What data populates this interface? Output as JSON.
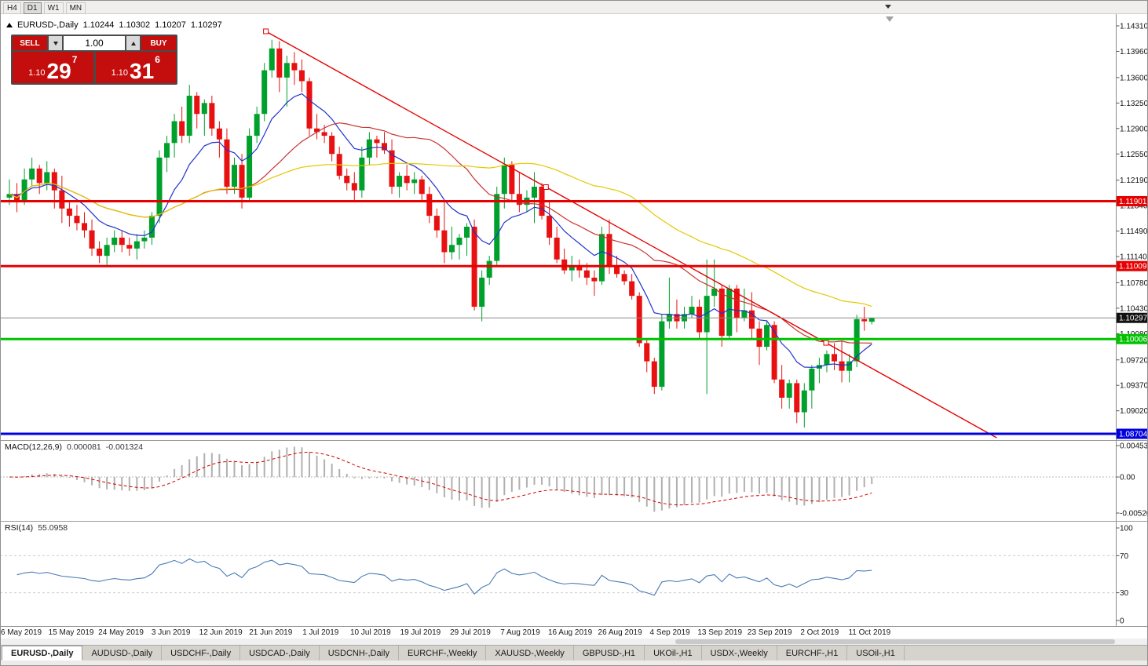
{
  "toolbar": {
    "timeframes": [
      {
        "label": "H4",
        "active": false
      },
      {
        "label": "D1",
        "active": true
      },
      {
        "label": "W1",
        "active": false
      },
      {
        "label": "MN",
        "active": false
      }
    ]
  },
  "chart": {
    "title": "EURUSD-,Daily",
    "open": "1.10244",
    "high": "1.10302",
    "low": "1.10207",
    "close": "1.10297"
  },
  "trade_panel": {
    "sell_label": "SELL",
    "buy_label": "BUY",
    "volume": "1.00",
    "bid": {
      "main": "1.10",
      "big": "29",
      "sup": "7"
    },
    "ask": {
      "main": "1.10",
      "big": "31",
      "sup": "6"
    }
  },
  "indicators": {
    "macd_label": "MACD(12,26,9)",
    "macd_value1": "0.000081",
    "macd_value2": "-0.001324",
    "rsi_label": "RSI(14)",
    "rsi_value": "55.0958"
  },
  "tabs": [
    "EURUSD-,Daily",
    "AUDUSD-,Daily",
    "USDCHF-,Daily",
    "USDCAD-,Daily",
    "USDCNH-,Daily",
    "EURCHF-,Weekly",
    "XAUUSD-,Weekly",
    "GBPUSD-,H1",
    "UKOil-,H1",
    "USDX-,Weekly",
    "EURCHF-,H1",
    "USOil-,H1"
  ],
  "chart_data": {
    "type": "candlestick",
    "symbol": "EURUSD",
    "timeframe": "Daily",
    "colors": {
      "up": "#00a02c",
      "down": "#e81010",
      "macd_histogram": "#b0b0b0",
      "macd_signal": "#d40000",
      "rsi": "#4a7ab5",
      "current_price_line": "#8a8a8a"
    },
    "price_axis_labels": [
      "1.14310",
      "1.13960",
      "1.13600",
      "1.13250",
      "1.12900",
      "1.12550",
      "1.12190",
      "1.11840",
      "1.11490",
      "1.11140",
      "1.10780",
      "1.10430",
      "1.10080",
      "1.09720",
      "1.09370",
      "1.09020"
    ],
    "date_labels": [
      "6 May 2019",
      "15 May 2019",
      "24 May 2019",
      "3 Jun 2019",
      "12 Jun 2019",
      "21 Jun 2019",
      "1 Jul 2019",
      "10 Jul 2019",
      "19 Jul 2019",
      "29 Jul 2019",
      "7 Aug 2019",
      "16 Aug 2019",
      "26 Aug 2019",
      "4 Sep 2019",
      "13 Sep 2019",
      "23 Sep 2019",
      "2 Oct 2019",
      "11 Oct 2019"
    ],
    "h_lines": [
      {
        "price": 1.11901,
        "label": "1.11901",
        "color": "#e60000",
        "width": 3
      },
      {
        "price": 1.11009,
        "label": "1.11009",
        "color": "#e60000",
        "width": 3
      },
      {
        "price": 1.10006,
        "label": "1.10006",
        "color": "#00c300",
        "width": 3
      },
      {
        "price": 1.08704,
        "label": "1.08704",
        "color": "#0000e0",
        "width": 3
      }
    ],
    "current_price": {
      "price": 1.10297,
      "label": "1.10297"
    },
    "trendline": {
      "color": "#e60000",
      "ray": true,
      "points": [
        [
          34.2,
          1.14235
        ],
        [
          108.9,
          1.09954
        ]
      ]
    },
    "moving_averages": [
      {
        "type": "ema",
        "period": 10,
        "color": "#2233cc"
      },
      {
        "type": "sma",
        "period": 25,
        "color": "#c83232"
      },
      {
        "type": "sma",
        "period": 50,
        "color": "#e3c800"
      }
    ],
    "macd_axis": [
      "0.004536",
      "0.00",
      "-0.005205"
    ],
    "macd_range": [
      0.004536,
      -0.005205
    ],
    "rsi_axis": [
      "100",
      "70",
      "30",
      "0"
    ],
    "rsi_levels": [
      70,
      30
    ],
    "candles": [
      [
        1.1195,
        1.122,
        1.1185,
        1.12
      ],
      [
        1.12,
        1.1215,
        1.1175,
        1.119
      ],
      [
        1.119,
        1.1235,
        1.1185,
        1.122
      ],
      [
        1.122,
        1.125,
        1.121,
        1.1235
      ],
      [
        1.1235,
        1.124,
        1.12,
        1.1215
      ],
      [
        1.1215,
        1.1245,
        1.1205,
        1.123
      ],
      [
        1.123,
        1.1235,
        1.118,
        1.1205
      ],
      [
        1.1205,
        1.1225,
        1.116,
        1.118
      ],
      [
        1.118,
        1.119,
        1.1155,
        1.117
      ],
      [
        1.117,
        1.1185,
        1.115,
        1.116
      ],
      [
        1.116,
        1.1175,
        1.114,
        1.115
      ],
      [
        1.115,
        1.1165,
        1.1115,
        1.1125
      ],
      [
        1.1125,
        1.1135,
        1.1105,
        1.1115
      ],
      [
        1.1115,
        1.114,
        1.11,
        1.113
      ],
      [
        1.113,
        1.115,
        1.112,
        1.114
      ],
      [
        1.114,
        1.115,
        1.112,
        1.113
      ],
      [
        1.113,
        1.114,
        1.1115,
        1.1125
      ],
      [
        1.1125,
        1.1145,
        1.111,
        1.1135
      ],
      [
        1.1135,
        1.115,
        1.1125,
        1.114
      ],
      [
        1.114,
        1.1175,
        1.113,
        1.117
      ],
      [
        1.117,
        1.126,
        1.116,
        1.125
      ],
      [
        1.125,
        1.128,
        1.123,
        1.127
      ],
      [
        1.127,
        1.131,
        1.125,
        1.13
      ],
      [
        1.13,
        1.132,
        1.127,
        1.128
      ],
      [
        1.128,
        1.135,
        1.127,
        1.1335
      ],
      [
        1.1335,
        1.134,
        1.129,
        1.131
      ],
      [
        1.131,
        1.133,
        1.128,
        1.1325
      ],
      [
        1.1325,
        1.1335,
        1.128,
        1.129
      ],
      [
        1.129,
        1.13,
        1.125,
        1.1275
      ],
      [
        1.1275,
        1.129,
        1.12,
        1.121
      ],
      [
        1.121,
        1.125,
        1.12,
        1.124
      ],
      [
        1.124,
        1.1255,
        1.118,
        1.1195
      ],
      [
        1.1195,
        1.129,
        1.119,
        1.128
      ],
      [
        1.128,
        1.132,
        1.127,
        1.131
      ],
      [
        1.131,
        1.138,
        1.13,
        1.137
      ],
      [
        1.137,
        1.1412,
        1.136,
        1.14
      ],
      [
        1.14,
        1.141,
        1.134,
        1.136
      ],
      [
        1.136,
        1.139,
        1.132,
        1.138
      ],
      [
        1.138,
        1.1395,
        1.135,
        1.137
      ],
      [
        1.137,
        1.1385,
        1.134,
        1.1355
      ],
      [
        1.1355,
        1.136,
        1.128,
        1.129
      ],
      [
        1.129,
        1.131,
        1.1275,
        1.1285
      ],
      [
        1.1285,
        1.1295,
        1.127,
        1.128
      ],
      [
        1.128,
        1.1285,
        1.1245,
        1.1255
      ],
      [
        1.1255,
        1.1265,
        1.122,
        1.1225
      ],
      [
        1.1225,
        1.1235,
        1.1205,
        1.1215
      ],
      [
        1.1215,
        1.123,
        1.119,
        1.1205
      ],
      [
        1.1205,
        1.1265,
        1.1195,
        1.125
      ],
      [
        1.125,
        1.1285,
        1.124,
        1.1275
      ],
      [
        1.1275,
        1.128,
        1.125,
        1.127
      ],
      [
        1.127,
        1.1285,
        1.1255,
        1.126
      ],
      [
        1.126,
        1.1275,
        1.12,
        1.121
      ],
      [
        1.121,
        1.123,
        1.1195,
        1.1225
      ],
      [
        1.1225,
        1.124,
        1.1205,
        1.1215
      ],
      [
        1.1215,
        1.123,
        1.12,
        1.122
      ],
      [
        1.122,
        1.1225,
        1.119,
        1.12
      ],
      [
        1.12,
        1.121,
        1.116,
        1.117
      ],
      [
        1.117,
        1.118,
        1.114,
        1.115
      ],
      [
        1.115,
        1.119,
        1.1105,
        1.112
      ],
      [
        1.112,
        1.1155,
        1.111,
        1.113
      ],
      [
        1.113,
        1.1145,
        1.111,
        1.114
      ],
      [
        1.114,
        1.116,
        1.1115,
        1.1155
      ],
      [
        1.1155,
        1.1165,
        1.104,
        1.1045
      ],
      [
        1.1045,
        1.1095,
        1.1025,
        1.1085
      ],
      [
        1.1085,
        1.1115,
        1.1075,
        1.1108
      ],
      [
        1.1108,
        1.121,
        1.11,
        1.12
      ],
      [
        1.12,
        1.125,
        1.118,
        1.124
      ],
      [
        1.124,
        1.1245,
        1.119,
        1.12
      ],
      [
        1.12,
        1.123,
        1.1175,
        1.1185
      ],
      [
        1.1185,
        1.1205,
        1.1175,
        1.1195
      ],
      [
        1.1195,
        1.123,
        1.116,
        1.121
      ],
      [
        1.121,
        1.1215,
        1.1165,
        1.117
      ],
      [
        1.117,
        1.119,
        1.113,
        1.114
      ],
      [
        1.114,
        1.1155,
        1.1105,
        1.111
      ],
      [
        1.111,
        1.1125,
        1.109,
        1.1095
      ],
      [
        1.1095,
        1.1115,
        1.108,
        1.11
      ],
      [
        1.11,
        1.111,
        1.1085,
        1.1095
      ],
      [
        1.1095,
        1.1105,
        1.1075,
        1.1085
      ],
      [
        1.1085,
        1.1095,
        1.106,
        1.108
      ],
      [
        1.108,
        1.1155,
        1.1075,
        1.1145
      ],
      [
        1.1145,
        1.1165,
        1.109,
        1.11
      ],
      [
        1.11,
        1.1115,
        1.1085,
        1.109
      ],
      [
        1.109,
        1.1095,
        1.1075,
        1.108
      ],
      [
        1.108,
        1.109,
        1.1055,
        1.106
      ],
      [
        1.106,
        1.1065,
        1.099,
        1.0995
      ],
      [
        1.0995,
        1.1,
        1.0955,
        1.097
      ],
      [
        1.097,
        1.0975,
        1.0925,
        1.0935
      ],
      [
        1.0935,
        1.1035,
        1.093,
        1.1025
      ],
      [
        1.1025,
        1.1085,
        1.1015,
        1.1035
      ],
      [
        1.1035,
        1.1055,
        1.1015,
        1.1025
      ],
      [
        1.1025,
        1.1045,
        1.1015,
        1.1035
      ],
      [
        1.1035,
        1.106,
        1.103,
        1.1045
      ],
      [
        1.1045,
        1.1055,
        1.1,
        1.101
      ],
      [
        1.101,
        1.111,
        1.0925,
        1.106
      ],
      [
        1.106,
        1.111,
        1.1045,
        1.107
      ],
      [
        1.107,
        1.1075,
        1.099,
        1.1005
      ],
      [
        1.1005,
        1.1075,
        1.1,
        1.107
      ],
      [
        1.107,
        1.1075,
        1.101,
        1.103
      ],
      [
        1.103,
        1.107,
        1.1025,
        1.104
      ],
      [
        1.104,
        1.1065,
        1.1,
        1.1015
      ],
      [
        1.1015,
        1.1025,
        1.0965,
        1.099
      ],
      [
        1.099,
        1.1025,
        1.0985,
        1.102
      ],
      [
        1.102,
        1.1025,
        1.094,
        1.0945
      ],
      [
        1.0945,
        1.0965,
        1.0905,
        1.092
      ],
      [
        1.092,
        1.0945,
        1.0905,
        1.094
      ],
      [
        1.094,
        1.0945,
        1.0885,
        1.09
      ],
      [
        1.09,
        1.094,
        1.0879,
        1.093
      ],
      [
        1.093,
        1.0965,
        1.0905,
        1.096
      ],
      [
        1.096,
        1.0975,
        1.094,
        1.0965
      ],
      [
        1.0965,
        1.0985,
        1.0955,
        1.098
      ],
      [
        1.098,
        1.0995,
        1.0958,
        1.097
      ],
      [
        1.097,
        1.0998,
        1.0941,
        1.0957
      ],
      [
        1.0957,
        1.098,
        1.0941,
        1.097
      ],
      [
        1.097,
        1.1034,
        1.0962,
        1.1028
      ],
      [
        1.1028,
        1.1045,
        1.1012,
        1.1025
      ],
      [
        1.10244,
        1.10302,
        1.10207,
        1.10297
      ]
    ]
  }
}
